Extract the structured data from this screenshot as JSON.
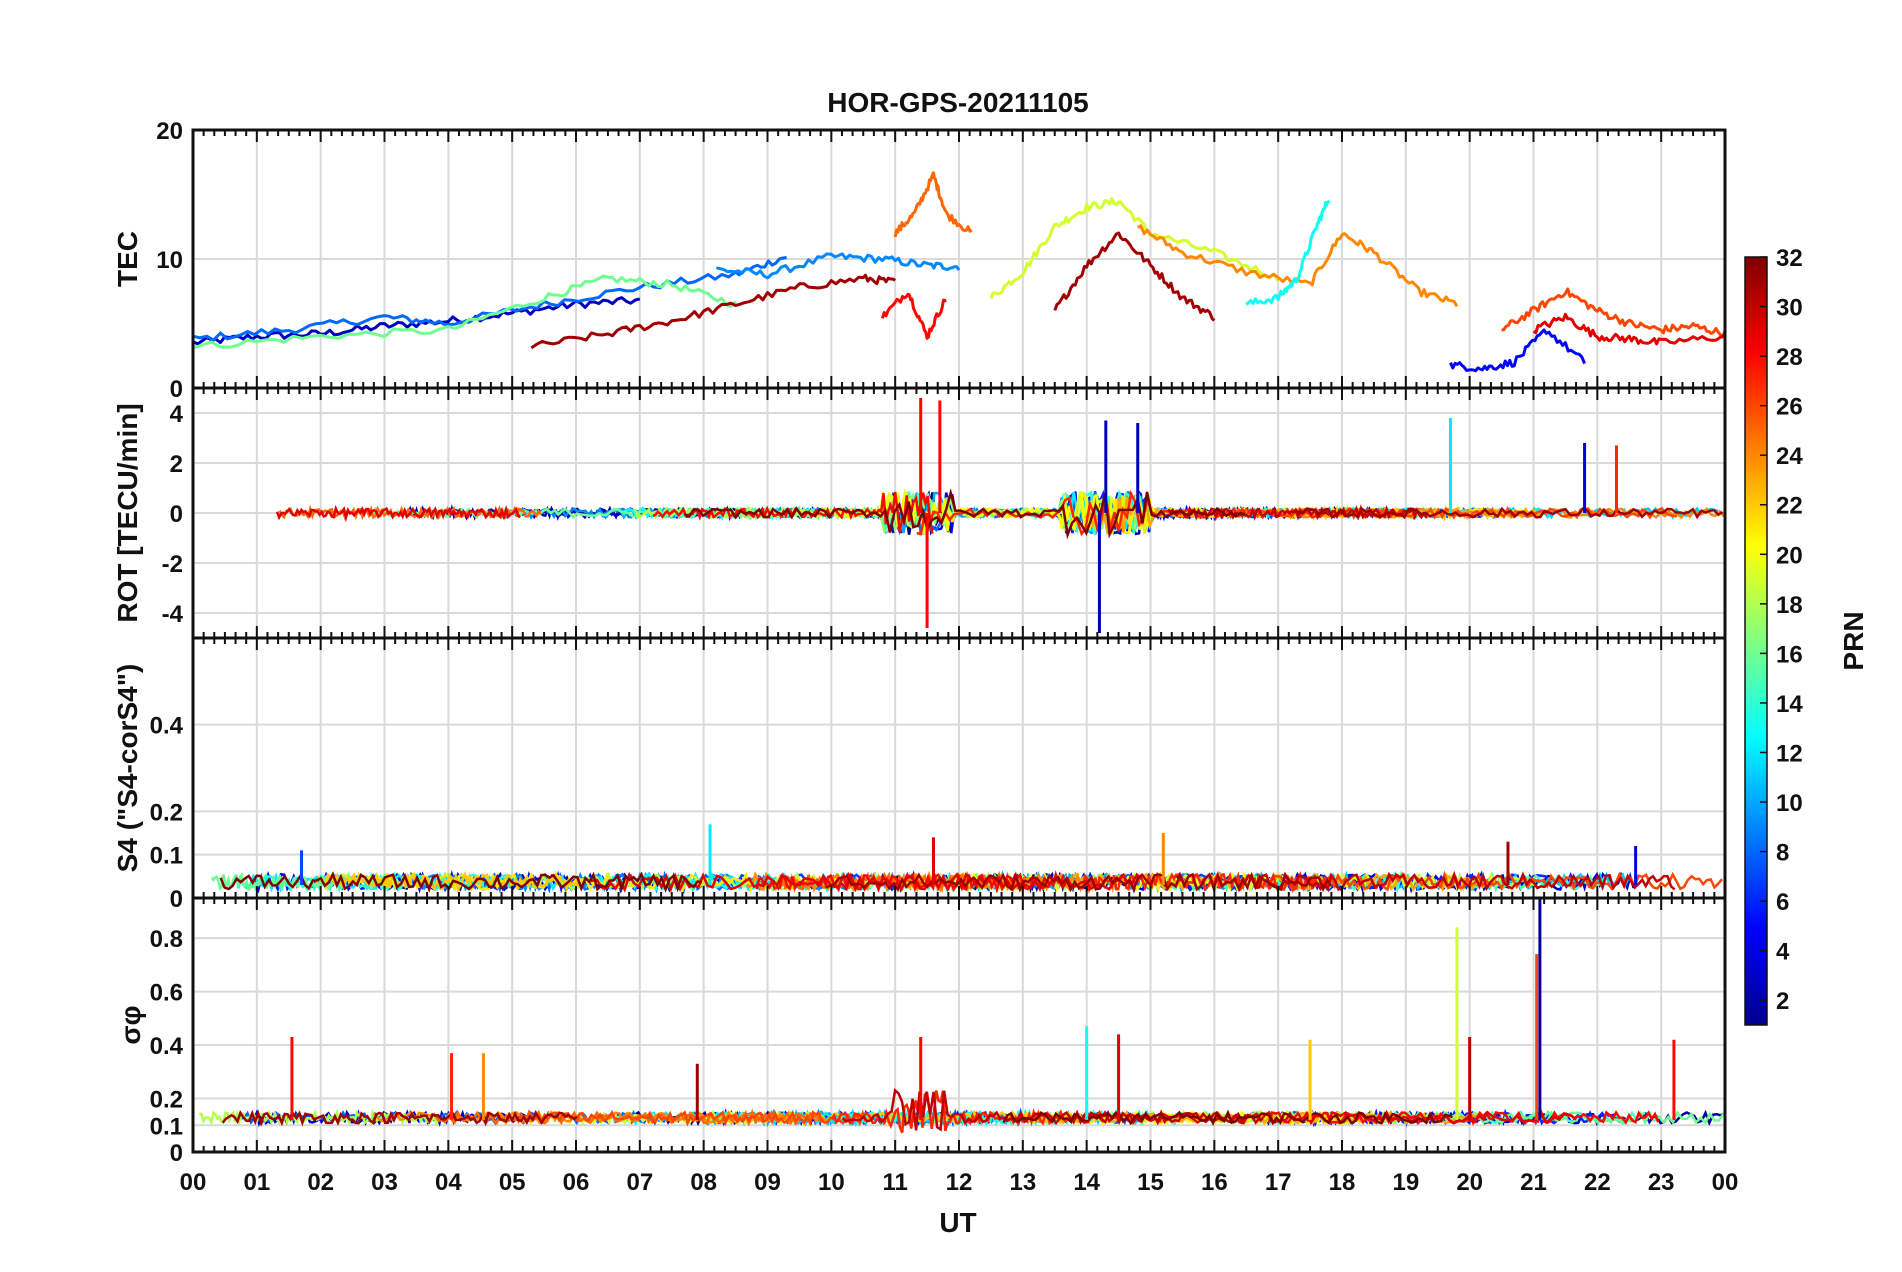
{
  "figure": {
    "title": "HOR-GPS-20211105",
    "xlabel": "UT",
    "x_ticks": [
      "00",
      "01",
      "02",
      "03",
      "04",
      "05",
      "06",
      "07",
      "08",
      "09",
      "10",
      "11",
      "12",
      "13",
      "14",
      "15",
      "16",
      "17",
      "18",
      "19",
      "20",
      "21",
      "22",
      "23",
      "00"
    ]
  },
  "colorbar": {
    "label": "PRN",
    "min": 1,
    "max": 32,
    "ticks": [
      "2",
      "4",
      "6",
      "8",
      "10",
      "12",
      "14",
      "16",
      "18",
      "20",
      "22",
      "24",
      "26",
      "28",
      "30",
      "32"
    ],
    "colormap": "jet"
  },
  "chart_data": [
    {
      "type": "line",
      "panel": "TEC",
      "title": "HOR-GPS-20211105",
      "ylabel": "TEC",
      "ylim": [
        0,
        20
      ],
      "yticks": [
        "0",
        "10",
        "20"
      ],
      "xlim_hours": [
        0,
        24
      ],
      "grid": true,
      "series_summary": "one line per PRN (1–32), colored by PRN",
      "series": [
        {
          "prn": 3,
          "x": [
            0,
            1,
            2,
            3,
            4,
            5,
            6,
            7
          ],
          "y": [
            3.5,
            4.0,
            4.2,
            4.8,
            5.2,
            5.8,
            6.5,
            6.8
          ]
        },
        {
          "prn": 8,
          "x": [
            0,
            1.5,
            3,
            4,
            5.5,
            7,
            8.5,
            9.3
          ],
          "y": [
            3.8,
            4.5,
            5.5,
            5.0,
            6.5,
            7.8,
            8.8,
            10.2
          ]
        },
        {
          "prn": 9,
          "x": [
            8.2,
            9,
            10,
            10.8,
            11.5,
            12
          ],
          "y": [
            9.2,
            8.8,
            10.2,
            10.0,
            9.5,
            9.4
          ]
        },
        {
          "prn": 16,
          "x": [
            0,
            2,
            4,
            5.5,
            6.5,
            7.5,
            8.5
          ],
          "y": [
            3.2,
            4.0,
            4.5,
            7.0,
            8.5,
            8.0,
            6.5
          ]
        },
        {
          "prn": 19,
          "x": [
            12.5,
            13,
            13.5,
            14,
            14.5,
            15,
            16,
            17
          ],
          "y": [
            7.0,
            9.0,
            12.5,
            14.0,
            14.5,
            12.0,
            10.5,
            8.5
          ]
        },
        {
          "prn": 25,
          "x": [
            11,
            11.3,
            11.6,
            11.8,
            12.2
          ],
          "y": [
            12.0,
            13.5,
            16.5,
            13.5,
            12.0
          ]
        },
        {
          "prn": 24,
          "x": [
            14.8,
            15.5,
            16.5,
            17.5,
            18,
            18.5,
            19.2,
            19.8
          ],
          "y": [
            12.5,
            10.5,
            9.0,
            8.0,
            12.0,
            10.5,
            7.5,
            6.5
          ]
        },
        {
          "prn": 31,
          "x": [
            5.3,
            6.5,
            7.5,
            8.5,
            9.5,
            10.5,
            11
          ],
          "y": [
            3.2,
            4.2,
            5.2,
            6.5,
            7.8,
            8.5,
            8.2
          ]
        },
        {
          "prn": 31,
          "x": [
            13.5,
            14,
            14.5,
            15,
            15.5,
            16
          ],
          "y": [
            6.0,
            9.5,
            12.0,
            9.5,
            7.0,
            5.5
          ]
        },
        {
          "prn": 28,
          "x": [
            10.8,
            11.2,
            11.5,
            11.8
          ],
          "y": [
            5.5,
            7.5,
            4.0,
            7.0
          ]
        },
        {
          "prn": 13,
          "x": [
            16.5,
            17,
            17.3,
            17.6,
            17.8
          ],
          "y": [
            6.5,
            7.0,
            8.5,
            12.5,
            14.8
          ]
        },
        {
          "prn": 5,
          "x": [
            19.7,
            20.2,
            20.7,
            21.2,
            21.8
          ],
          "y": [
            1.8,
            1.5,
            2.0,
            4.5,
            2.0
          ]
        },
        {
          "prn": 26,
          "x": [
            20.5,
            21,
            21.5,
            22,
            22.5,
            23,
            23.5,
            24
          ],
          "y": [
            4.5,
            6.0,
            7.5,
            6.0,
            5.0,
            4.5,
            4.8,
            4.2
          ]
        },
        {
          "prn": 29,
          "x": [
            21,
            21.5,
            22,
            22.5,
            23,
            24
          ],
          "y": [
            4.5,
            5.5,
            4.0,
            3.8,
            3.5,
            4.0
          ]
        }
      ]
    },
    {
      "type": "line",
      "panel": "ROT",
      "ylabel": "ROT [TECU/min]",
      "ylim": [
        -5,
        5
      ],
      "yticks": [
        "-4",
        "-2",
        "0",
        "2",
        "4"
      ],
      "xlim_hours": [
        0,
        24
      ],
      "grid": true,
      "series_summary": "one line per PRN, values near 0 with large excursions near 10.8–12 UT and 13.5–15 UT",
      "peaks": [
        {
          "prn": 28,
          "x": 11.4,
          "y": 4.6
        },
        {
          "prn": 28,
          "x": 11.5,
          "y": -4.6
        },
        {
          "prn": 28,
          "x": 11.7,
          "y": 4.5
        },
        {
          "prn": 3,
          "x": 14.2,
          "y": -4.8
        },
        {
          "prn": 3,
          "x": 14.3,
          "y": 3.7
        },
        {
          "prn": 3,
          "x": 14.8,
          "y": 3.6
        },
        {
          "prn": 12,
          "x": 19.7,
          "y": 3.8
        },
        {
          "prn": 4,
          "x": 21.8,
          "y": 2.8
        },
        {
          "prn": 27,
          "x": 22.3,
          "y": 2.7
        }
      ]
    },
    {
      "type": "line",
      "panel": "S4",
      "ylabel": "S4 (\"S4-corS4\")",
      "ylim": [
        0,
        0.6
      ],
      "yticks": [
        "0",
        "0.1",
        "0.2",
        "0.4"
      ],
      "xlim_hours": [
        0,
        24
      ],
      "grid": true,
      "series_summary": "one line per PRN, mostly 0.02–0.08 with peaks up to ~0.17",
      "peaks": [
        {
          "prn": 12,
          "x": 8.1,
          "y": 0.17
        },
        {
          "prn": 24,
          "x": 15.2,
          "y": 0.15
        },
        {
          "prn": 29,
          "x": 11.6,
          "y": 0.14
        },
        {
          "prn": 31,
          "x": 20.6,
          "y": 0.13
        },
        {
          "prn": 4,
          "x": 22.6,
          "y": 0.12
        },
        {
          "prn": 7,
          "x": 1.7,
          "y": 0.11
        }
      ]
    },
    {
      "type": "line",
      "panel": "sigma_phi",
      "ylabel": "σφ",
      "ylim": [
        0,
        0.95
      ],
      "yticks": [
        "0",
        "0.1",
        "0.2",
        "0.4",
        "0.6",
        "0.8"
      ],
      "xlim_hours": [
        0,
        24
      ],
      "grid": true,
      "series_summary": "one line per PRN, baseline ~0.1–0.15 with spikes",
      "peaks": [
        {
          "prn": 28,
          "x": 1.55,
          "y": 0.43
        },
        {
          "prn": 27,
          "x": 4.05,
          "y": 0.37
        },
        {
          "prn": 24,
          "x": 4.55,
          "y": 0.37
        },
        {
          "prn": 31,
          "x": 7.9,
          "y": 0.33
        },
        {
          "prn": 28,
          "x": 11.4,
          "y": 0.43
        },
        {
          "prn": 13,
          "x": 14.0,
          "y": 0.47
        },
        {
          "prn": 29,
          "x": 14.5,
          "y": 0.44
        },
        {
          "prn": 22,
          "x": 17.5,
          "y": 0.42
        },
        {
          "prn": 19,
          "x": 19.8,
          "y": 0.84
        },
        {
          "prn": 30,
          "x": 20.0,
          "y": 0.43
        },
        {
          "prn": 2,
          "x": 21.1,
          "y": 0.95
        },
        {
          "prn": 26,
          "x": 21.05,
          "y": 0.74
        },
        {
          "prn": 28,
          "x": 23.2,
          "y": 0.42
        }
      ]
    }
  ]
}
